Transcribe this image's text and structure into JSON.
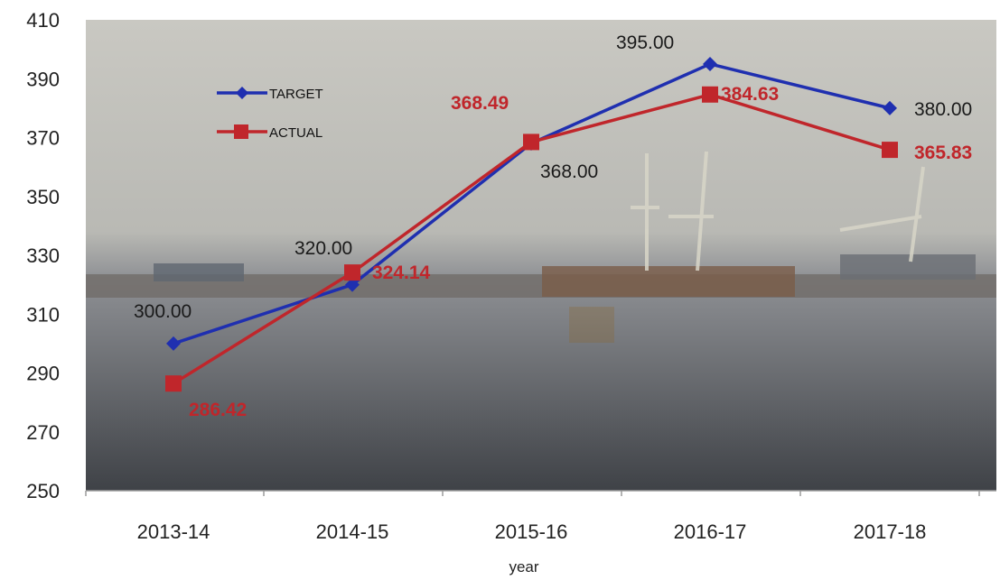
{
  "chart_data": {
    "type": "line",
    "categories": [
      "2013-14",
      "2014-15",
      "2015-16",
      "2016-17",
      "2017-18"
    ],
    "xlabel": "year",
    "ylabel": "",
    "title": "",
    "ylim": [
      250,
      410
    ],
    "yticks": [
      250,
      270,
      290,
      310,
      330,
      350,
      370,
      390,
      410
    ],
    "grid": false,
    "legend": "top-left",
    "background": "photo of port with cranes and ships on water",
    "series": [
      {
        "name": "TARGET",
        "color": "#1f2fb0",
        "marker": "diamond",
        "values": [
          300.0,
          320.0,
          368.0,
          395.0,
          380.0
        ],
        "labels": [
          "300.00",
          "320.00",
          "368.00",
          "395.00",
          "380.00"
        ]
      },
      {
        "name": "ACTUAL",
        "color": "#c0262b",
        "marker": "square",
        "values": [
          286.42,
          324.14,
          368.49,
          384.63,
          365.83
        ],
        "labels": [
          "286.42",
          "324.14",
          "368.49",
          "384.63",
          "365.83"
        ]
      }
    ]
  }
}
